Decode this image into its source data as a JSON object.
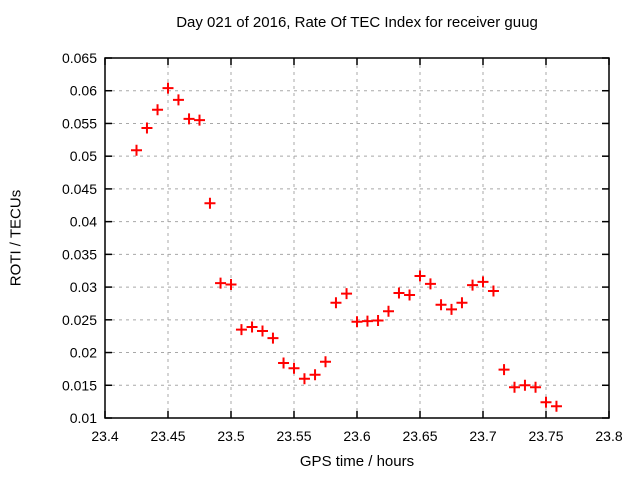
{
  "chart_data": {
    "type": "scatter",
    "title": "Day 021 of 2016, Rate Of TEC Index for receiver guug",
    "xlabel": "GPS time / hours",
    "ylabel": "ROTI / TECUs",
    "xlim": [
      23.4,
      23.8
    ],
    "ylim": [
      0.01,
      0.065
    ],
    "xtick_labels": [
      "23.4",
      "23.45",
      "23.5",
      "23.55",
      "23.6",
      "23.65",
      "23.7",
      "23.75",
      "23.8"
    ],
    "ytick_labels": [
      "0.01",
      "0.015",
      "0.02",
      "0.025",
      "0.03",
      "0.035",
      "0.04",
      "0.045",
      "0.05",
      "0.055",
      "0.06",
      "0.065"
    ],
    "grid": true,
    "legend_position": "none",
    "marker": "plus",
    "series": [
      {
        "name": "ROTI",
        "points": [
          [
            23.425,
            0.0509
          ],
          [
            23.4333,
            0.0543
          ],
          [
            23.4417,
            0.0571
          ],
          [
            23.45,
            0.0604
          ],
          [
            23.4583,
            0.0586
          ],
          [
            23.4667,
            0.0557
          ],
          [
            23.475,
            0.0555
          ],
          [
            23.4833,
            0.0428
          ],
          [
            23.4917,
            0.0306
          ],
          [
            23.5,
            0.0304
          ],
          [
            23.5083,
            0.0235
          ],
          [
            23.5167,
            0.0239
          ],
          [
            23.525,
            0.0233
          ],
          [
            23.5333,
            0.0222
          ],
          [
            23.5417,
            0.0184
          ],
          [
            23.55,
            0.0176
          ],
          [
            23.5583,
            0.016
          ],
          [
            23.5667,
            0.0166
          ],
          [
            23.575,
            0.0186
          ],
          [
            23.5833,
            0.0276
          ],
          [
            23.5917,
            0.029
          ],
          [
            23.6,
            0.0247
          ],
          [
            23.6083,
            0.0248
          ],
          [
            23.6167,
            0.0249
          ],
          [
            23.625,
            0.0263
          ],
          [
            23.6333,
            0.0291
          ],
          [
            23.6417,
            0.0288
          ],
          [
            23.65,
            0.0317
          ],
          [
            23.6583,
            0.0305
          ],
          [
            23.6667,
            0.0273
          ],
          [
            23.675,
            0.0266
          ],
          [
            23.6833,
            0.0276
          ],
          [
            23.6917,
            0.0303
          ],
          [
            23.7,
            0.0308
          ],
          [
            23.7083,
            0.0294
          ],
          [
            23.7167,
            0.0174
          ],
          [
            23.725,
            0.0147
          ],
          [
            23.7333,
            0.015
          ],
          [
            23.7417,
            0.0147
          ],
          [
            23.75,
            0.0124
          ],
          [
            23.7583,
            0.0118
          ]
        ]
      }
    ],
    "colors": {
      "marker": "#ff0000",
      "grid": "#a8a8a8",
      "axis": "#000000",
      "background": "#ffffff",
      "text": "#000000"
    }
  }
}
